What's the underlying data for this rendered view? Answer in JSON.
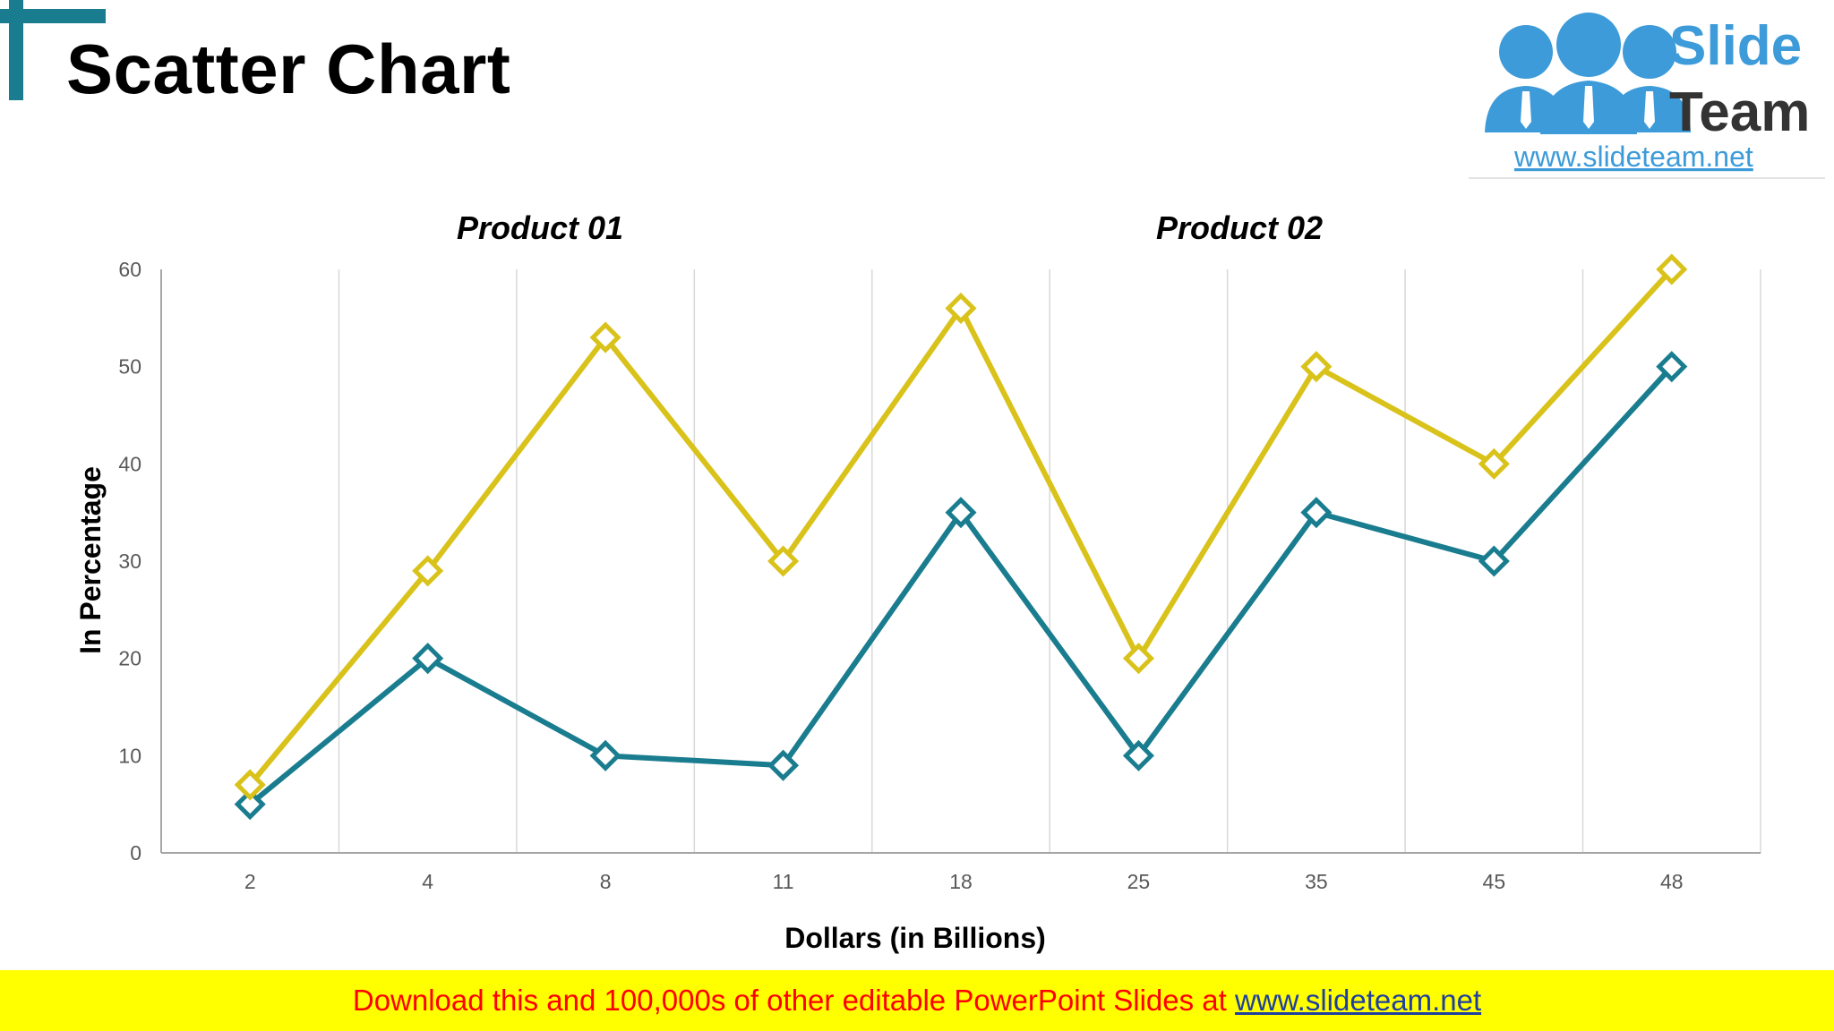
{
  "slide": {
    "title": "Scatter Chart"
  },
  "logo": {
    "line1": "Slide",
    "line2": "Team",
    "url": "www.slideteam.net"
  },
  "footer": {
    "text": "Download this and 100,000s of other editable PowerPoint Slides at",
    "link": "www.slideteam.net"
  },
  "colors": {
    "accent": "#1a7d8f",
    "product01": "#d9c21a",
    "product02": "#1a7d8f",
    "footer_bg": "#ffff00",
    "footer_text": "#ff0000",
    "footer_link": "#1f3fa0",
    "logo_blue": "#3d9bd9",
    "logo_dark": "#333333",
    "gridline": "#d9d9d9",
    "axis": "#a6a6a6"
  },
  "chart_data": {
    "type": "line",
    "title": "",
    "xlabel": "Dollars (in Billions)",
    "ylabel": "In Percentage",
    "categories": [
      "2",
      "4",
      "8",
      "11",
      "18",
      "25",
      "35",
      "45",
      "48"
    ],
    "ylim": [
      0,
      60
    ],
    "yticks": [
      0,
      10,
      20,
      30,
      40,
      50,
      60
    ],
    "grid": "vertical",
    "legend": "top",
    "marker": "diamond-open",
    "series": [
      {
        "name": "Product 01",
        "color": "#d9c21a",
        "values": [
          7,
          29,
          53,
          30,
          56,
          20,
          50,
          40,
          60
        ]
      },
      {
        "name": "Product 02",
        "color": "#1a7d8f",
        "values": [
          5,
          20,
          10,
          9,
          35,
          10,
          35,
          30,
          50
        ]
      }
    ]
  }
}
